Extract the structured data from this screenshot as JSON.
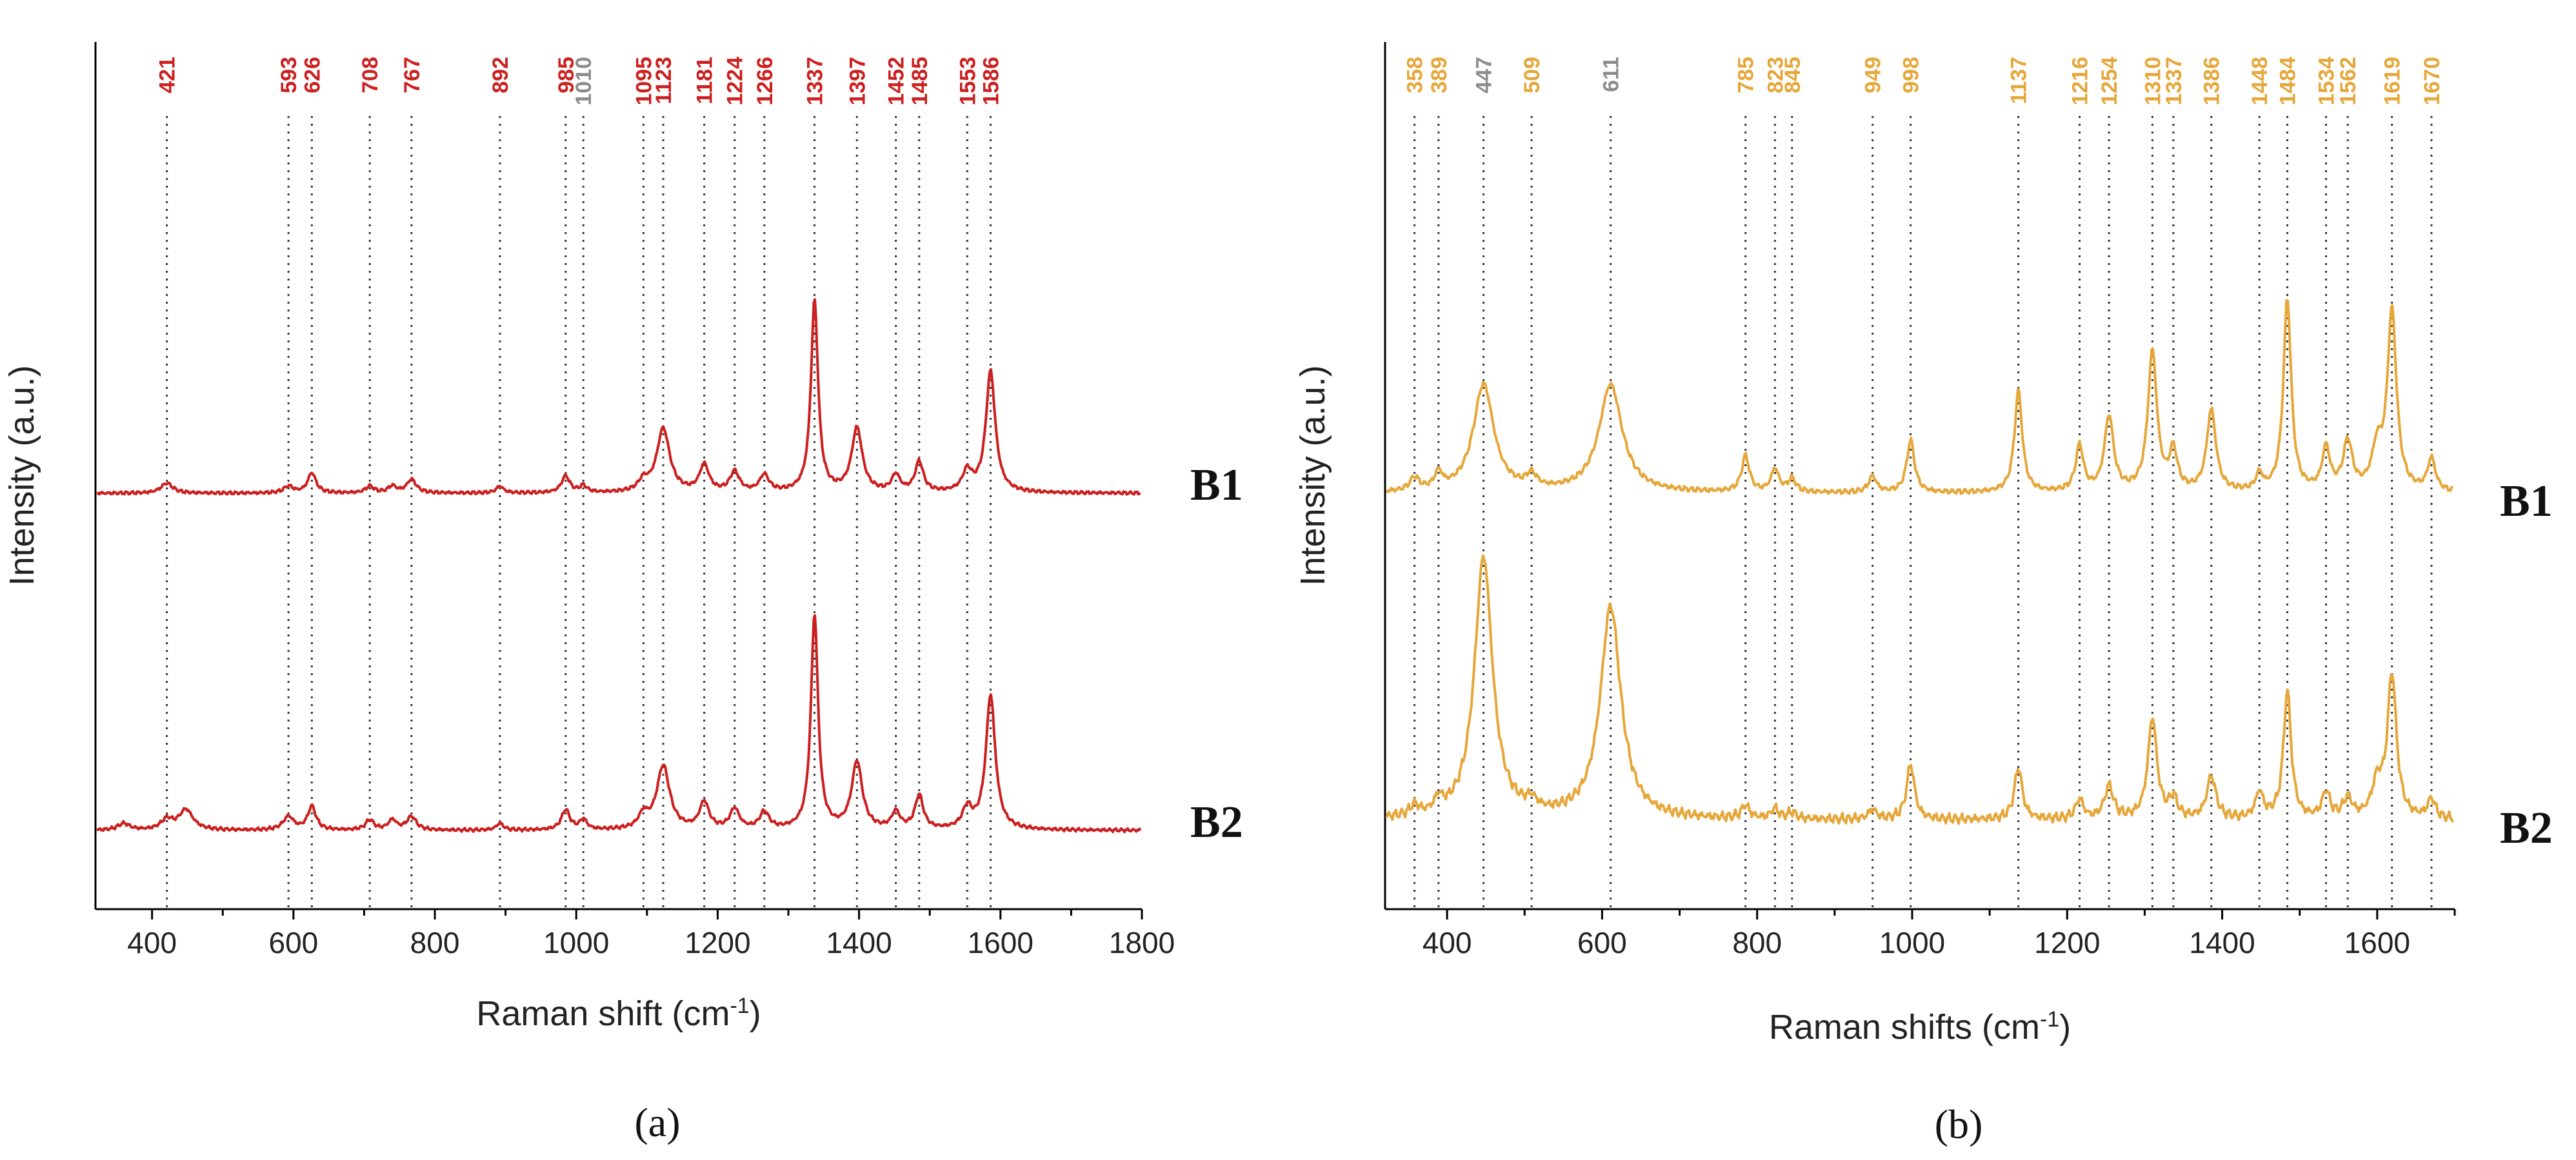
{
  "chart_data": [
    {
      "type": "line",
      "panel_label": "(a)",
      "xlabel": "Raman shift (cm",
      "xlabel_sup": "-1",
      "xlabel_end": ")",
      "ylabel": "Intensity (a.u.)",
      "xlim": [
        320,
        1800
      ],
      "xticks": [
        400,
        600,
        800,
        1000,
        1200,
        1400,
        1600,
        1800
      ],
      "ylim": [
        0,
        2.15
      ],
      "color": "#cc1f1f",
      "muted_color": "#8c8c8c",
      "peaks": [
        {
          "x": 421,
          "label": "421",
          "muted": false
        },
        {
          "x": 593,
          "label": "593",
          "muted": false
        },
        {
          "x": 626,
          "label": "626",
          "muted": false
        },
        {
          "x": 708,
          "label": "708",
          "muted": false
        },
        {
          "x": 767,
          "label": "767",
          "muted": false
        },
        {
          "x": 892,
          "label": "892",
          "muted": false
        },
        {
          "x": 985,
          "label": "985",
          "muted": false
        },
        {
          "x": 1010,
          "label": "1010",
          "muted": true
        },
        {
          "x": 1095,
          "label": "1095",
          "muted": false
        },
        {
          "x": 1123,
          "label": "1123",
          "muted": false
        },
        {
          "x": 1181,
          "label": "1181",
          "muted": false
        },
        {
          "x": 1224,
          "label": "1224",
          "muted": false
        },
        {
          "x": 1266,
          "label": "1266",
          "muted": false
        },
        {
          "x": 1337,
          "label": "1337",
          "muted": false
        },
        {
          "x": 1397,
          "label": "1397",
          "muted": false
        },
        {
          "x": 1452,
          "label": "1452",
          "muted": false
        },
        {
          "x": 1485,
          "label": "1485",
          "muted": false
        },
        {
          "x": 1553,
          "label": "1553",
          "muted": false
        },
        {
          "x": 1586,
          "label": "1586",
          "muted": false
        }
      ],
      "series": [
        {
          "name": "B1",
          "baseline": 1.0,
          "bands": [
            [
              421,
              0.03,
              10
            ],
            [
              593,
              0.02,
              8
            ],
            [
              626,
              0.06,
              7
            ],
            [
              708,
              0.02,
              7
            ],
            [
              740,
              0.02,
              7
            ],
            [
              767,
              0.04,
              8
            ],
            [
              892,
              0.02,
              6
            ],
            [
              985,
              0.05,
              7
            ],
            [
              1010,
              0.02,
              6
            ],
            [
              1095,
              0.03,
              8
            ],
            [
              1123,
              0.19,
              11
            ],
            [
              1181,
              0.08,
              8
            ],
            [
              1224,
              0.06,
              8
            ],
            [
              1266,
              0.05,
              8
            ],
            [
              1337,
              0.57,
              6
            ],
            [
              1397,
              0.19,
              9
            ],
            [
              1452,
              0.05,
              7
            ],
            [
              1485,
              0.09,
              7
            ],
            [
              1553,
              0.06,
              8
            ],
            [
              1586,
              0.36,
              8
            ]
          ]
        },
        {
          "name": "B2",
          "baseline": 0.0,
          "bands": [
            [
              360,
              0.02,
              10
            ],
            [
              421,
              0.03,
              10
            ],
            [
              448,
              0.06,
              12
            ],
            [
              593,
              0.04,
              9
            ],
            [
              626,
              0.07,
              7
            ],
            [
              708,
              0.03,
              7
            ],
            [
              740,
              0.03,
              7
            ],
            [
              767,
              0.04,
              8
            ],
            [
              892,
              0.02,
              6
            ],
            [
              985,
              0.06,
              7
            ],
            [
              1010,
              0.03,
              6
            ],
            [
              1095,
              0.04,
              8
            ],
            [
              1123,
              0.19,
              11
            ],
            [
              1181,
              0.08,
              8
            ],
            [
              1224,
              0.06,
              8
            ],
            [
              1266,
              0.05,
              8
            ],
            [
              1337,
              0.64,
              6
            ],
            [
              1397,
              0.2,
              9
            ],
            [
              1452,
              0.05,
              7
            ],
            [
              1485,
              0.1,
              7
            ],
            [
              1553,
              0.06,
              8
            ],
            [
              1586,
              0.4,
              8
            ]
          ]
        }
      ]
    },
    {
      "type": "line",
      "panel_label": "(b)",
      "xlabel": "Raman shifts (cm",
      "xlabel_sup": "-1",
      "xlabel_end": ")",
      "ylabel": "Intensity (a.u.)",
      "xlim": [
        320,
        1700
      ],
      "xticks": [
        400,
        600,
        800,
        1000,
        1200,
        1400,
        1600
      ],
      "ylim": [
        0,
        2.05
      ],
      "color": "#e6a73a",
      "muted_color": "#8c8c8c",
      "peaks": [
        {
          "x": 358,
          "label": "358",
          "muted": false
        },
        {
          "x": 389,
          "label": "389",
          "muted": false
        },
        {
          "x": 447,
          "label": "447",
          "muted": true
        },
        {
          "x": 509,
          "label": "509",
          "muted": false
        },
        {
          "x": 611,
          "label": "611",
          "muted": true
        },
        {
          "x": 785,
          "label": "785",
          "muted": false
        },
        {
          "x": 823,
          "label": "823",
          "muted": false
        },
        {
          "x": 845,
          "label": "845",
          "muted": false
        },
        {
          "x": 949,
          "label": "949",
          "muted": false
        },
        {
          "x": 998,
          "label": "998",
          "muted": false
        },
        {
          "x": 1137,
          "label": "1137",
          "muted": false
        },
        {
          "x": 1216,
          "label": "1216",
          "muted": false
        },
        {
          "x": 1254,
          "label": "1254",
          "muted": false
        },
        {
          "x": 1310,
          "label": "1310",
          "muted": false
        },
        {
          "x": 1337,
          "label": "1337",
          "muted": false
        },
        {
          "x": 1386,
          "label": "1386",
          "muted": false
        },
        {
          "x": 1448,
          "label": "1448",
          "muted": false
        },
        {
          "x": 1484,
          "label": "1484",
          "muted": false
        },
        {
          "x": 1534,
          "label": "1534",
          "muted": false
        },
        {
          "x": 1562,
          "label": "1562",
          "muted": false
        },
        {
          "x": 1619,
          "label": "1619",
          "muted": false
        },
        {
          "x": 1670,
          "label": "1670",
          "muted": false
        }
      ],
      "series": [
        {
          "name": "B1",
          "baseline": 1.0,
          "bands": [
            [
              358,
              0.04,
              7
            ],
            [
              389,
              0.05,
              6
            ],
            [
              447,
              0.33,
              16
            ],
            [
              509,
              0.04,
              8
            ],
            [
              611,
              0.33,
              18
            ],
            [
              785,
              0.11,
              6
            ],
            [
              823,
              0.07,
              6
            ],
            [
              845,
              0.04,
              6
            ],
            [
              949,
              0.05,
              6
            ],
            [
              998,
              0.16,
              6
            ],
            [
              1137,
              0.31,
              6
            ],
            [
              1216,
              0.14,
              6
            ],
            [
              1254,
              0.23,
              7
            ],
            [
              1310,
              0.43,
              7
            ],
            [
              1337,
              0.12,
              6
            ],
            [
              1386,
              0.25,
              7
            ],
            [
              1448,
              0.05,
              5
            ],
            [
              1484,
              0.59,
              6
            ],
            [
              1534,
              0.13,
              6
            ],
            [
              1562,
              0.15,
              7
            ],
            [
              1600,
              0.12,
              8
            ],
            [
              1619,
              0.55,
              7
            ],
            [
              1670,
              0.1,
              6
            ]
          ]
        },
        {
          "name": "B2",
          "baseline": 0.0,
          "bands": [
            [
              358,
              0.03,
              7
            ],
            [
              389,
              0.04,
              6
            ],
            [
              447,
              0.8,
              14
            ],
            [
              509,
              0.03,
              8
            ],
            [
              611,
              0.65,
              16
            ],
            [
              785,
              0.04,
              6
            ],
            [
              823,
              0.03,
              6
            ],
            [
              845,
              0.02,
              6
            ],
            [
              949,
              0.03,
              6
            ],
            [
              998,
              0.17,
              6
            ],
            [
              1137,
              0.16,
              6
            ],
            [
              1216,
              0.06,
              6
            ],
            [
              1254,
              0.1,
              7
            ],
            [
              1310,
              0.31,
              7
            ],
            [
              1337,
              0.06,
              6
            ],
            [
              1386,
              0.13,
              7
            ],
            [
              1448,
              0.08,
              6
            ],
            [
              1484,
              0.39,
              6
            ],
            [
              1534,
              0.08,
              6
            ],
            [
              1562,
              0.06,
              7
            ],
            [
              1600,
              0.1,
              8
            ],
            [
              1619,
              0.44,
              7
            ],
            [
              1670,
              0.06,
              6
            ]
          ]
        }
      ]
    }
  ]
}
